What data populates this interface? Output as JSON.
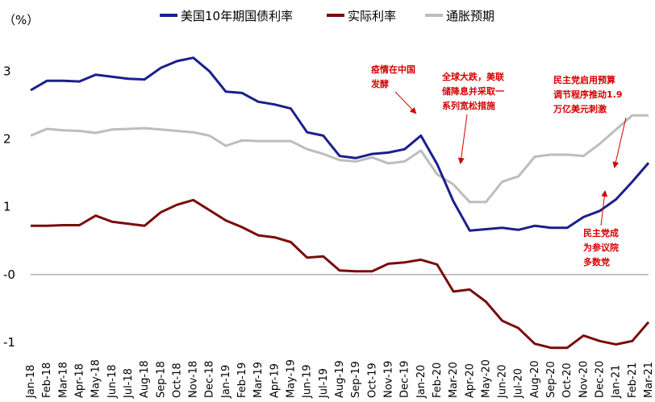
{
  "chart_data": {
    "type": "line",
    "title": "",
    "unit_label": "（%）",
    "ylim": [
      -1,
      3.6
    ],
    "y_ticks": [
      {
        "value": 3,
        "label": "3"
      },
      {
        "value": 2,
        "label": "2"
      },
      {
        "value": 1,
        "label": "1"
      },
      {
        "value": 0,
        "label": "-0"
      },
      {
        "value": -1,
        "label": "-1"
      }
    ],
    "x_ticks": [
      "Jan-18",
      "Feb-18",
      "Mar-18",
      "Apr-18",
      "May-18",
      "Jun-18",
      "Jul-18",
      "Aug-18",
      "Sep-18",
      "Oct-18",
      "Nov-18",
      "Dec-18",
      "Jan-19",
      "Feb-19",
      "Mar-19",
      "Apr-19",
      "May-19",
      "Jun-19",
      "Jul-19",
      "Aug-19",
      "Sep-19",
      "Oct-19",
      "Nov-19",
      "Dec-19",
      "Jan-20",
      "Feb-20",
      "Mar-20",
      "Apr-20",
      "May-20",
      "Jun-20",
      "Jul-20",
      "Aug-20",
      "Sep-20",
      "Oct-20",
      "Nov-20",
      "Dec-20",
      "Jan-21",
      "Feb-21",
      "Mar-21"
    ],
    "legend_position": "top",
    "grid": false,
    "series": [
      {
        "name": "美国10年期国债利率",
        "color": "#1a1f8c",
        "values": [
          2.72,
          2.86,
          2.86,
          2.85,
          2.95,
          2.92,
          2.89,
          2.88,
          3.05,
          3.15,
          3.2,
          3.0,
          2.7,
          2.68,
          2.55,
          2.51,
          2.45,
          2.1,
          2.05,
          1.75,
          1.72,
          1.78,
          1.8,
          1.85,
          2.05,
          1.63,
          1.08,
          0.65,
          0.67,
          0.69,
          0.66,
          0.72,
          0.69,
          0.69,
          0.85,
          0.94,
          1.11,
          1.37,
          1.65
        ]
      },
      {
        "name": "实际利率",
        "color": "#7a0c0c",
        "values": [
          0.72,
          0.72,
          0.73,
          0.73,
          0.87,
          0.78,
          0.75,
          0.72,
          0.92,
          1.03,
          1.1,
          0.95,
          0.8,
          0.7,
          0.58,
          0.55,
          0.48,
          0.25,
          0.27,
          0.06,
          0.05,
          0.05,
          0.16,
          0.18,
          0.22,
          0.15,
          -0.25,
          -0.22,
          -0.4,
          -0.68,
          -0.79,
          -1.02,
          -1.08,
          -1.08,
          -0.9,
          -0.98,
          -1.03,
          -0.98,
          -0.7
        ]
      },
      {
        "name": "通胀预期",
        "color": "#bdbdbd",
        "values": [
          2.05,
          2.15,
          2.13,
          2.12,
          2.09,
          2.14,
          2.15,
          2.16,
          2.14,
          2.12,
          2.1,
          2.05,
          1.9,
          1.98,
          1.97,
          1.97,
          1.97,
          1.85,
          1.78,
          1.69,
          1.67,
          1.73,
          1.64,
          1.67,
          1.83,
          1.48,
          1.33,
          1.07,
          1.07,
          1.37,
          1.45,
          1.74,
          1.77,
          1.77,
          1.75,
          1.93,
          2.14,
          2.35,
          2.35
        ]
      }
    ],
    "annotations": [
      {
        "lines": [
          "疫情在中国",
          "发酵"
        ]
      },
      {
        "lines": [
          "全球大跌，美联",
          "储降息并采取一",
          "系列宽松措施"
        ]
      },
      {
        "lines": [
          "民主党启用预算",
          "调节程序推动1.9",
          "万亿美元刺激"
        ]
      },
      {
        "lines": [
          "民主党成",
          "为参议院",
          "多数党"
        ]
      }
    ]
  }
}
